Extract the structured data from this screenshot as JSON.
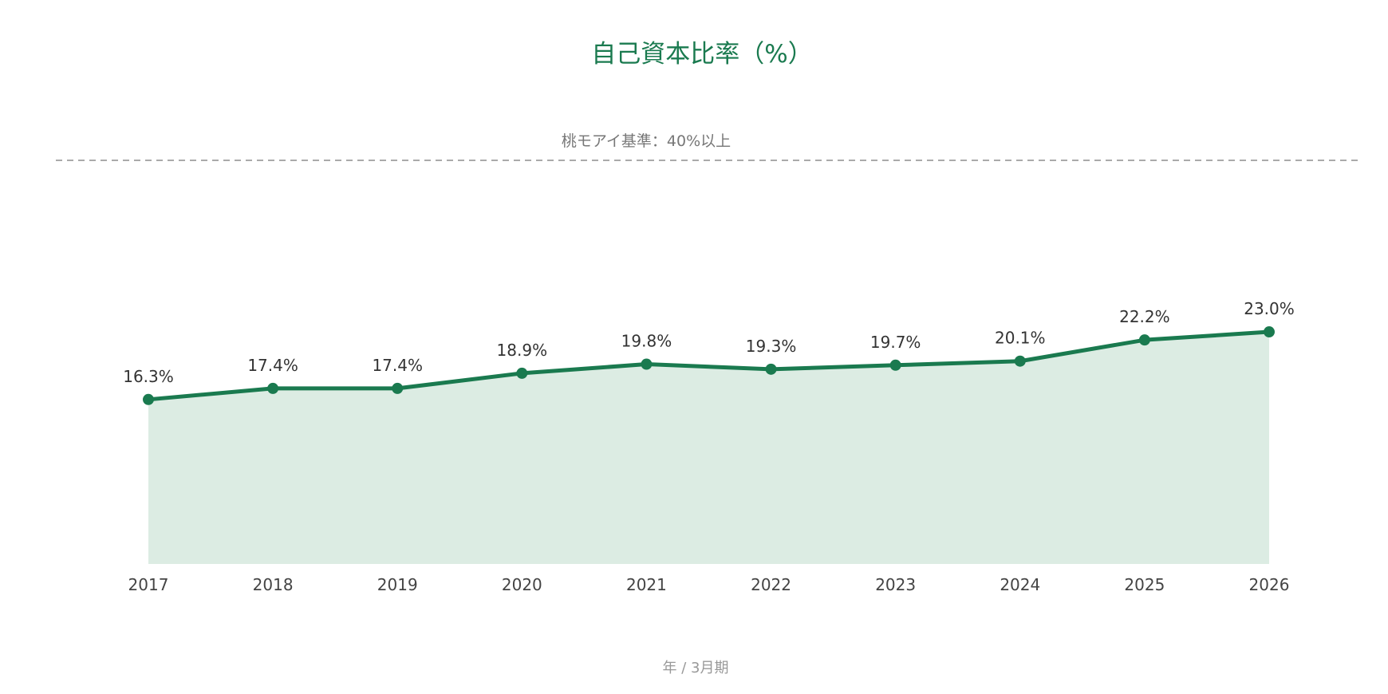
{
  "chart_data": {
    "type": "area",
    "title": "自己資本比率（%）",
    "xlabel": "年 / 3月期",
    "ylabel": "",
    "categories": [
      "2017",
      "2018",
      "2019",
      "2020",
      "2021",
      "2022",
      "2023",
      "2024",
      "2025",
      "2026"
    ],
    "values": [
      16.3,
      17.4,
      17.4,
      18.9,
      19.8,
      19.3,
      19.7,
      20.1,
      22.2,
      23.0
    ],
    "data_labels": [
      "16.3%",
      "17.4%",
      "17.4%",
      "18.9%",
      "19.8%",
      "19.3%",
      "19.7%",
      "20.1%",
      "22.2%",
      "23.0%"
    ],
    "ylim": [
      0,
      40
    ],
    "grid": false,
    "legend": "none",
    "reference_line": {
      "value": 40,
      "label": "桃モアイ基準：40%以上",
      "style": "dashed",
      "color": "#aaaaaa"
    },
    "colors": {
      "line": "#1a7a4f",
      "fill": "#dcece3",
      "title": "#1a7a4f"
    }
  }
}
